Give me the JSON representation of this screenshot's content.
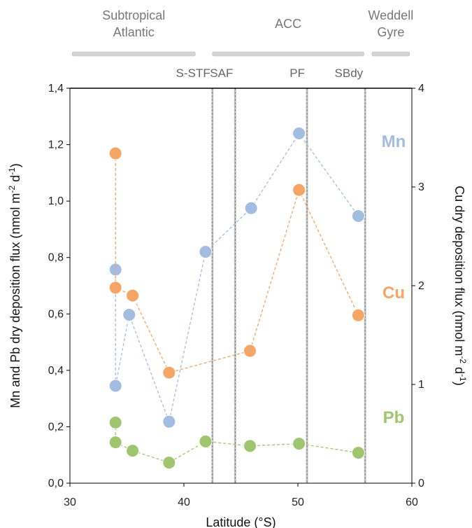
{
  "chart_data": {
    "type": "scatter",
    "xlabel": "Latitude (°S)",
    "ylabel_left": "Mn and Pb dry deposition flux (nmol m-2 d-1)",
    "ylabel_right": "Cu dry deposition flux (nmol m-2 d-1)",
    "xlim": [
      30,
      60
    ],
    "ylim_left": [
      0,
      1.4
    ],
    "ylim_right": [
      0,
      4
    ],
    "x_ticks": [
      "30",
      "40",
      "50",
      "60"
    ],
    "y_ticks_left": [
      "0,0",
      "0,2",
      "0,4",
      "0,6",
      "0,8",
      "1,0",
      "1,2",
      "1,4"
    ],
    "y_ticks_right": [
      "0",
      "1",
      "2",
      "3",
      "4"
    ],
    "regions": [
      {
        "label_lines": [
          "Subtropical",
          "Atlantic"
        ],
        "x_start": 30.2,
        "x_end": 41.0
      },
      {
        "label_lines": [
          "ACC"
        ],
        "x_start": 42.5,
        "x_end": 55.8
      },
      {
        "label_lines": [
          "Weddell",
          "Gyre"
        ],
        "x_start": 56.5,
        "x_end": 59.8
      }
    ],
    "fronts": [
      {
        "label": "S-STF",
        "x": 42.5
      },
      {
        "label": "SAF",
        "x": 44.5
      },
      {
        "label": "PF",
        "x": 50.8
      },
      {
        "label": "SBdy",
        "x": 55.9
      }
    ],
    "series": [
      {
        "name": "Mn",
        "axis": "left",
        "color": "#a3bde0",
        "points": [
          [
            34.0,
            0.757
          ],
          [
            34.0,
            0.345
          ],
          [
            35.2,
            0.597
          ],
          [
            38.7,
            0.218
          ],
          [
            41.9,
            0.82
          ],
          [
            45.9,
            0.975
          ],
          [
            50.1,
            1.24
          ],
          [
            55.3,
            0.947
          ]
        ]
      },
      {
        "name": "Cu",
        "axis": "right",
        "color": "#f5a565",
        "points": [
          [
            34.0,
            3.34
          ],
          [
            34.0,
            1.98
          ],
          [
            35.5,
            1.9
          ],
          [
            38.7,
            1.12
          ],
          [
            45.8,
            1.34
          ],
          [
            50.1,
            2.97
          ],
          [
            55.3,
            1.7
          ]
        ]
      },
      {
        "name": "Pb",
        "axis": "left",
        "color": "#9fc56f",
        "points": [
          [
            34.0,
            0.215
          ],
          [
            34.0,
            0.145
          ],
          [
            35.5,
            0.115
          ],
          [
            38.7,
            0.073
          ],
          [
            41.9,
            0.148
          ],
          [
            45.8,
            0.132
          ],
          [
            50.1,
            0.14
          ],
          [
            55.3,
            0.108
          ]
        ]
      }
    ]
  }
}
